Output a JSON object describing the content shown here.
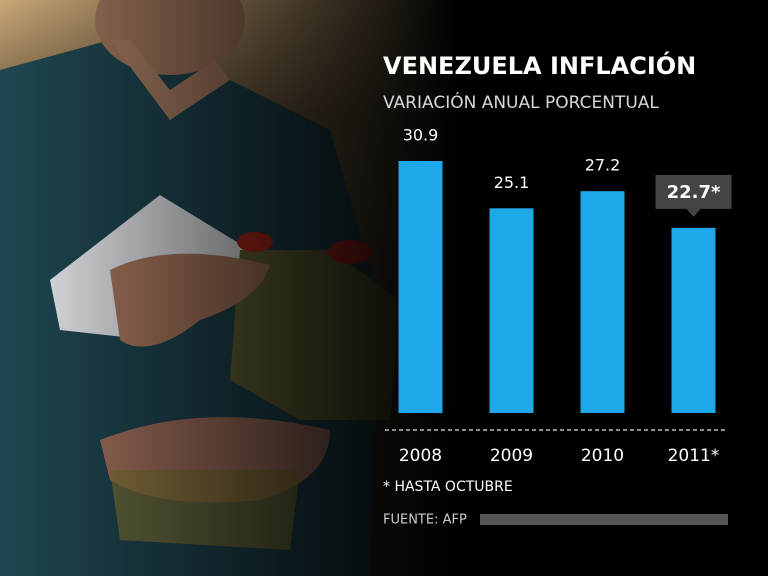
{
  "chart_data": {
    "type": "bar",
    "title": "VENEZUELA INFLACIÓN",
    "subtitle": "VARIACIÓN ANUAL PORCENTUAL",
    "categories": [
      "2008",
      "2009",
      "2010",
      "2011*"
    ],
    "values": [
      30.9,
      25.1,
      27.2,
      22.7
    ],
    "value_labels": [
      "30.9",
      "25.1",
      "27.2",
      "22.7*"
    ],
    "color": "#1ea8ea",
    "footnote": "* HASTA OCTUBRE",
    "source": "FUENTE:  AFP"
  }
}
